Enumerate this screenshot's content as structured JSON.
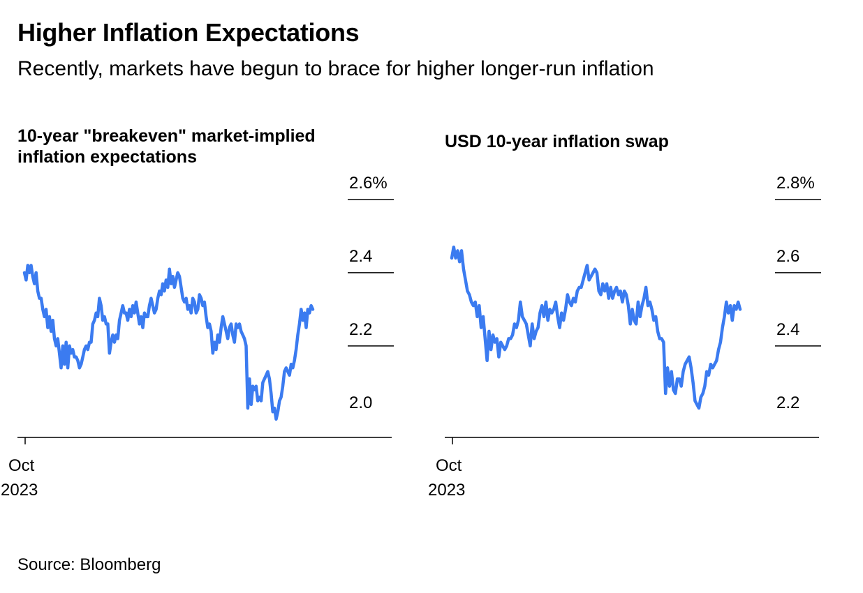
{
  "header": {
    "title": "Higher Inflation Expectations",
    "subtitle": "Recently, markets have begun to brace for higher longer-run inflation"
  },
  "footer": {
    "source": "Source: Bloomberg"
  },
  "colors": {
    "line": "#3b7bf0",
    "axis": "#000000",
    "text": "#000000"
  },
  "chart_data": [
    {
      "type": "line",
      "title": "10-year \"breakeven\" market-implied inflation expectations",
      "xlabel": "",
      "ylabel": "",
      "x_tick": {
        "label_line1": "Oct",
        "label_line2": "2023",
        "index": 0
      },
      "y_ticks": [
        {
          "value": 2.6,
          "label": "2.6%"
        },
        {
          "value": 2.4,
          "label": "2.4"
        },
        {
          "value": 2.2,
          "label": "2.2"
        },
        {
          "value": 2.0,
          "label": "2.0"
        }
      ],
      "ylim": [
        1.95,
        2.6
      ],
      "grid": false,
      "series": [
        {
          "values": [
            2.4,
            2.38,
            2.42,
            2.4,
            2.42,
            2.39,
            2.37,
            2.4,
            2.35,
            2.33,
            2.33,
            2.3,
            2.28,
            2.3,
            2.25,
            2.28,
            2.24,
            2.27,
            2.22,
            2.2,
            2.22,
            2.18,
            2.14,
            2.2,
            2.15,
            2.21,
            2.14,
            2.2,
            2.18,
            2.19,
            2.17,
            2.17,
            2.16,
            2.14,
            2.15,
            2.17,
            2.19,
            2.2,
            2.19,
            2.21,
            2.21,
            2.26,
            2.27,
            2.29,
            2.28,
            2.33,
            2.31,
            2.27,
            2.28,
            2.26,
            2.26,
            2.18,
            2.21,
            2.23,
            2.21,
            2.23,
            2.22,
            2.27,
            2.29,
            2.31,
            2.29,
            2.29,
            2.27,
            2.3,
            2.28,
            2.31,
            2.29,
            2.32,
            2.29,
            2.26,
            2.28,
            2.25,
            2.29,
            2.28,
            2.28,
            2.31,
            2.33,
            2.31,
            2.29,
            2.3,
            2.33,
            2.35,
            2.34,
            2.37,
            2.35,
            2.38,
            2.36,
            2.41,
            2.37,
            2.39,
            2.36,
            2.38,
            2.4,
            2.39,
            2.36,
            2.33,
            2.32,
            2.33,
            2.3,
            2.31,
            2.29,
            2.33,
            2.32,
            2.29,
            2.3,
            2.34,
            2.33,
            2.31,
            2.32,
            2.28,
            2.25,
            2.26,
            2.24,
            2.18,
            2.21,
            2.19,
            2.23,
            2.21,
            2.25,
            2.28,
            2.26,
            2.24,
            2.22,
            2.25,
            2.26,
            2.23,
            2.21,
            2.26,
            2.25,
            2.26,
            2.24,
            2.23,
            2.22,
            2.2,
            2.03,
            2.11,
            2.04,
            2.09,
            2.08,
            2.09,
            2.05,
            2.06,
            2.05,
            2.1,
            2.11,
            2.12,
            2.13,
            2.11,
            2.07,
            2.02,
            2.03,
            2.0,
            2.02,
            2.05,
            2.06,
            2.09,
            2.13,
            2.14,
            2.13,
            2.12,
            2.15,
            2.14,
            2.16,
            2.19,
            2.23,
            2.26,
            2.3,
            2.27,
            2.29,
            2.25,
            2.3,
            2.29,
            2.31,
            2.3
          ]
        }
      ]
    },
    {
      "type": "line",
      "title": "USD 10-year inflation swap",
      "xlabel": "",
      "ylabel": "",
      "x_tick": {
        "label_line1": "Oct",
        "label_line2": "2023",
        "index": 0
      },
      "y_ticks": [
        {
          "value": 2.8,
          "label": "2.8%"
        },
        {
          "value": 2.6,
          "label": "2.6"
        },
        {
          "value": 2.4,
          "label": "2.4"
        },
        {
          "value": 2.2,
          "label": "2.2"
        }
      ],
      "ylim": [
        2.15,
        2.8
      ],
      "grid": false,
      "series": [
        {
          "values": [
            2.64,
            2.67,
            2.64,
            2.66,
            2.63,
            2.66,
            2.61,
            2.58,
            2.55,
            2.54,
            2.52,
            2.51,
            2.52,
            2.48,
            2.51,
            2.45,
            2.48,
            2.42,
            2.36,
            2.44,
            2.39,
            2.43,
            2.41,
            2.42,
            2.37,
            2.41,
            2.4,
            2.39,
            2.4,
            2.42,
            2.42,
            2.43,
            2.46,
            2.45,
            2.47,
            2.52,
            2.48,
            2.47,
            2.46,
            2.43,
            2.4,
            2.46,
            2.42,
            2.44,
            2.45,
            2.49,
            2.51,
            2.48,
            2.52,
            2.47,
            2.5,
            2.49,
            2.5,
            2.52,
            2.48,
            2.45,
            2.49,
            2.47,
            2.5,
            2.54,
            2.52,
            2.51,
            2.53,
            2.52,
            2.55,
            2.56,
            2.56,
            2.58,
            2.6,
            2.62,
            2.58,
            2.59,
            2.6,
            2.61,
            2.6,
            2.55,
            2.54,
            2.57,
            2.55,
            2.57,
            2.53,
            2.56,
            2.53,
            2.55,
            2.56,
            2.54,
            2.55,
            2.52,
            2.55,
            2.54,
            2.51,
            2.46,
            2.5,
            2.47,
            2.46,
            2.52,
            2.48,
            2.51,
            2.53,
            2.56,
            2.51,
            2.52,
            2.5,
            2.47,
            2.48,
            2.44,
            2.42,
            2.42,
            2.41,
            2.27,
            2.34,
            2.29,
            2.33,
            2.28,
            2.27,
            2.31,
            2.31,
            2.29,
            2.33,
            2.35,
            2.36,
            2.37,
            2.34,
            2.3,
            2.25,
            2.24,
            2.23,
            2.26,
            2.27,
            2.29,
            2.33,
            2.32,
            2.35,
            2.34,
            2.35,
            2.36,
            2.39,
            2.41,
            2.45,
            2.48,
            2.52,
            2.49,
            2.51,
            2.47,
            2.51,
            2.5,
            2.52,
            2.5
          ]
        }
      ]
    }
  ]
}
